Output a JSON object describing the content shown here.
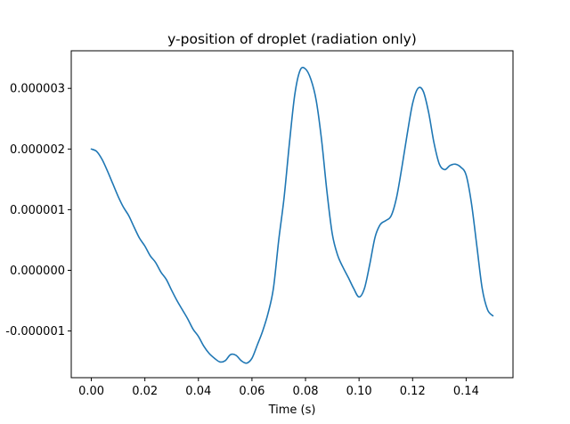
{
  "chart_data": {
    "type": "line",
    "title": "y-position of droplet (radiation only)",
    "xlabel": "Time (s)",
    "ylabel": "",
    "xlim": [
      -0.0075,
      0.1575
    ],
    "ylim": [
      -1.77e-06,
      3.62e-06
    ],
    "grid": false,
    "legend": "none",
    "x_ticks": [
      0.0,
      0.02,
      0.04,
      0.06,
      0.08,
      0.1,
      0.12,
      0.14
    ],
    "x_tick_labels": [
      "0.00",
      "0.02",
      "0.04",
      "0.06",
      "0.08",
      "0.10",
      "0.12",
      "0.14"
    ],
    "y_ticks": [
      -1e-06,
      0.0,
      1e-06,
      2e-06,
      3e-06
    ],
    "y_tick_labels": [
      "-0.000001",
      "0.000000",
      "0.000001",
      "0.000002",
      "0.000003"
    ],
    "series": [
      {
        "color": "#1f77b4",
        "x": [
          0.0,
          0.002,
          0.004,
          0.006,
          0.008,
          0.01,
          0.012,
          0.014,
          0.016,
          0.018,
          0.02,
          0.022,
          0.024,
          0.026,
          0.028,
          0.03,
          0.032,
          0.034,
          0.036,
          0.038,
          0.04,
          0.042,
          0.044,
          0.046,
          0.048,
          0.05,
          0.052,
          0.054,
          0.056,
          0.058,
          0.06,
          0.062,
          0.064,
          0.066,
          0.068,
          0.07,
          0.072,
          0.074,
          0.076,
          0.078,
          0.08,
          0.082,
          0.084,
          0.086,
          0.088,
          0.09,
          0.092,
          0.094,
          0.096,
          0.098,
          0.1,
          0.102,
          0.104,
          0.106,
          0.108,
          0.11,
          0.112,
          0.114,
          0.116,
          0.118,
          0.12,
          0.122,
          0.124,
          0.126,
          0.128,
          0.13,
          0.132,
          0.134,
          0.136,
          0.138,
          0.14,
          0.142,
          0.144,
          0.146,
          0.148,
          0.15
        ],
        "values": [
          2e-06,
          1.96e-06,
          1.83e-06,
          1.64e-06,
          1.43e-06,
          1.22e-06,
          1.04e-06,
          9e-07,
          7.1e-07,
          5.3e-07,
          4e-07,
          2.4e-07,
          1.3e-07,
          -3e-08,
          -1.5e-07,
          -3.3e-07,
          -5e-07,
          -6.5e-07,
          -8e-07,
          -9.7e-07,
          -1.09e-06,
          -1.25e-06,
          -1.37e-06,
          -1.45e-06,
          -1.51e-06,
          -1.49e-06,
          -1.39e-06,
          -1.4e-06,
          -1.49e-06,
          -1.53e-06,
          -1.45e-06,
          -1.23e-06,
          -1e-06,
          -7.1e-07,
          -3e-07,
          5e-07,
          1.2e-06,
          2.1e-06,
          2.9e-06,
          3.3e-06,
          3.32e-06,
          3.15e-06,
          2.8e-06,
          2.15e-06,
          1.3e-06,
          6e-07,
          2.5e-07,
          5e-08,
          -1.2e-07,
          -3e-07,
          -4.4e-07,
          -3e-07,
          1e-07,
          5.5e-07,
          7.6e-07,
          8.2e-07,
          9e-07,
          1.2e-06,
          1.7e-06,
          2.25e-06,
          2.75e-06,
          3e-06,
          2.95e-06,
          2.6e-06,
          2.1e-06,
          1.75e-06,
          1.66e-06,
          1.73e-06,
          1.75e-06,
          1.7e-06,
          1.57e-06,
          1.1e-06,
          4e-07,
          -3e-07,
          -6.5e-07,
          -7.5e-07
        ]
      }
    ]
  }
}
